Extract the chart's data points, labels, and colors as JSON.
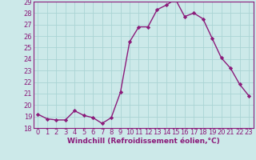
{
  "x": [
    0,
    1,
    2,
    3,
    4,
    5,
    6,
    7,
    8,
    9,
    10,
    11,
    12,
    13,
    14,
    15,
    16,
    17,
    18,
    19,
    20,
    21,
    22,
    23
  ],
  "y": [
    19.2,
    18.8,
    18.7,
    18.7,
    19.5,
    19.1,
    18.9,
    18.4,
    18.9,
    21.1,
    25.5,
    26.8,
    26.8,
    28.3,
    28.7,
    29.2,
    27.7,
    28.0,
    27.5,
    25.8,
    24.1,
    23.2,
    21.8,
    20.8
  ],
  "line_color": "#8b1a7a",
  "marker": "D",
  "markersize": 2.2,
  "linewidth": 1.0,
  "background_color": "#cce9e9",
  "grid_color": "#aad4d4",
  "xlabel": "Windchill (Refroidissement éolien,°C)",
  "xlabel_color": "#8b1a7a",
  "tick_color": "#8b1a7a",
  "spine_color": "#8b1a7a",
  "ylim": [
    18,
    29
  ],
  "xlim": [
    -0.5,
    23.5
  ],
  "yticks": [
    18,
    19,
    20,
    21,
    22,
    23,
    24,
    25,
    26,
    27,
    28,
    29
  ],
  "xticks": [
    0,
    1,
    2,
    3,
    4,
    5,
    6,
    7,
    8,
    9,
    10,
    11,
    12,
    13,
    14,
    15,
    16,
    17,
    18,
    19,
    20,
    21,
    22,
    23
  ],
  "fontsize_xlabel": 6.5,
  "fontsize_ticks": 6.0
}
